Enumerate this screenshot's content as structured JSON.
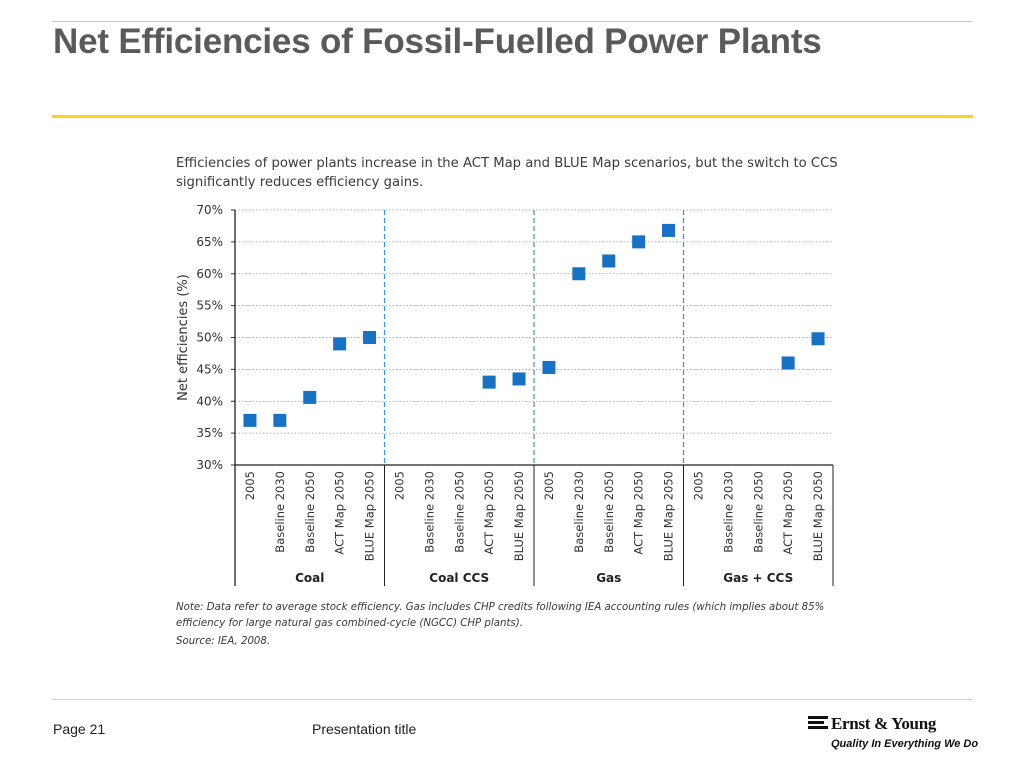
{
  "slide": {
    "title": "Net Efficiencies of Fossil-Fuelled Power Plants",
    "caption": "Efficiencies of power plants increase in the ACT Map and BLUE Map scenarios, but the switch to CCS significantly reduces efficiency gains.",
    "note": "Note: Data refer to average stock efficiency. Gas includes CHP credits following IEA accounting rules (which implies about 85% efficiency for large natural gas combined-cycle (NGCC) CHP plants).",
    "source": "Source: IEA, 2008."
  },
  "footer": {
    "page": "Page 21",
    "presentation_title": "Presentation title",
    "logo_name": "Ernst & Young",
    "logo_tagline": "Quality In Everything We Do"
  },
  "colors": {
    "marker": "#1872c4",
    "group_divider": "#3d8fd6",
    "title": "#5a5a5a",
    "rule": "#ffd21f"
  },
  "chart_data": {
    "type": "scatter",
    "ylabel": "Net efficiencies (%)",
    "ylim": [
      30,
      70
    ],
    "yticks": [
      "30%",
      "35%",
      "40%",
      "45%",
      "50%",
      "55%",
      "60%",
      "65%",
      "70%"
    ],
    "yticks_values": [
      30,
      35,
      40,
      45,
      50,
      55,
      60,
      65,
      70
    ],
    "grid": "horizontal dotted",
    "marker": "square",
    "groups": [
      {
        "name": "Coal",
        "categories": [
          "2005",
          "Baseline 2030",
          "Baseline 2050",
          "ACT Map 2050",
          "BLUE Map 2050"
        ],
        "values": [
          37,
          37,
          40.6,
          49,
          50
        ]
      },
      {
        "name": "Coal CCS",
        "categories": [
          "2005",
          "Baseline 2030",
          "Baseline 2050",
          "ACT Map 2050",
          "BLUE Map 2050"
        ],
        "values": [
          null,
          null,
          null,
          43,
          43.5
        ]
      },
      {
        "name": "Gas",
        "categories": [
          "2005",
          "Baseline 2030",
          "Baseline 2050",
          "ACT Map 2050",
          "BLUE Map 2050"
        ],
        "values": [
          45.3,
          60,
          62,
          65,
          66.8
        ]
      },
      {
        "name": "Gas + CCS",
        "categories": [
          "2005",
          "Baseline 2030",
          "Baseline 2050",
          "ACT Map 2050",
          "BLUE Map 2050"
        ],
        "values": [
          null,
          null,
          null,
          46,
          49.8
        ]
      }
    ]
  }
}
